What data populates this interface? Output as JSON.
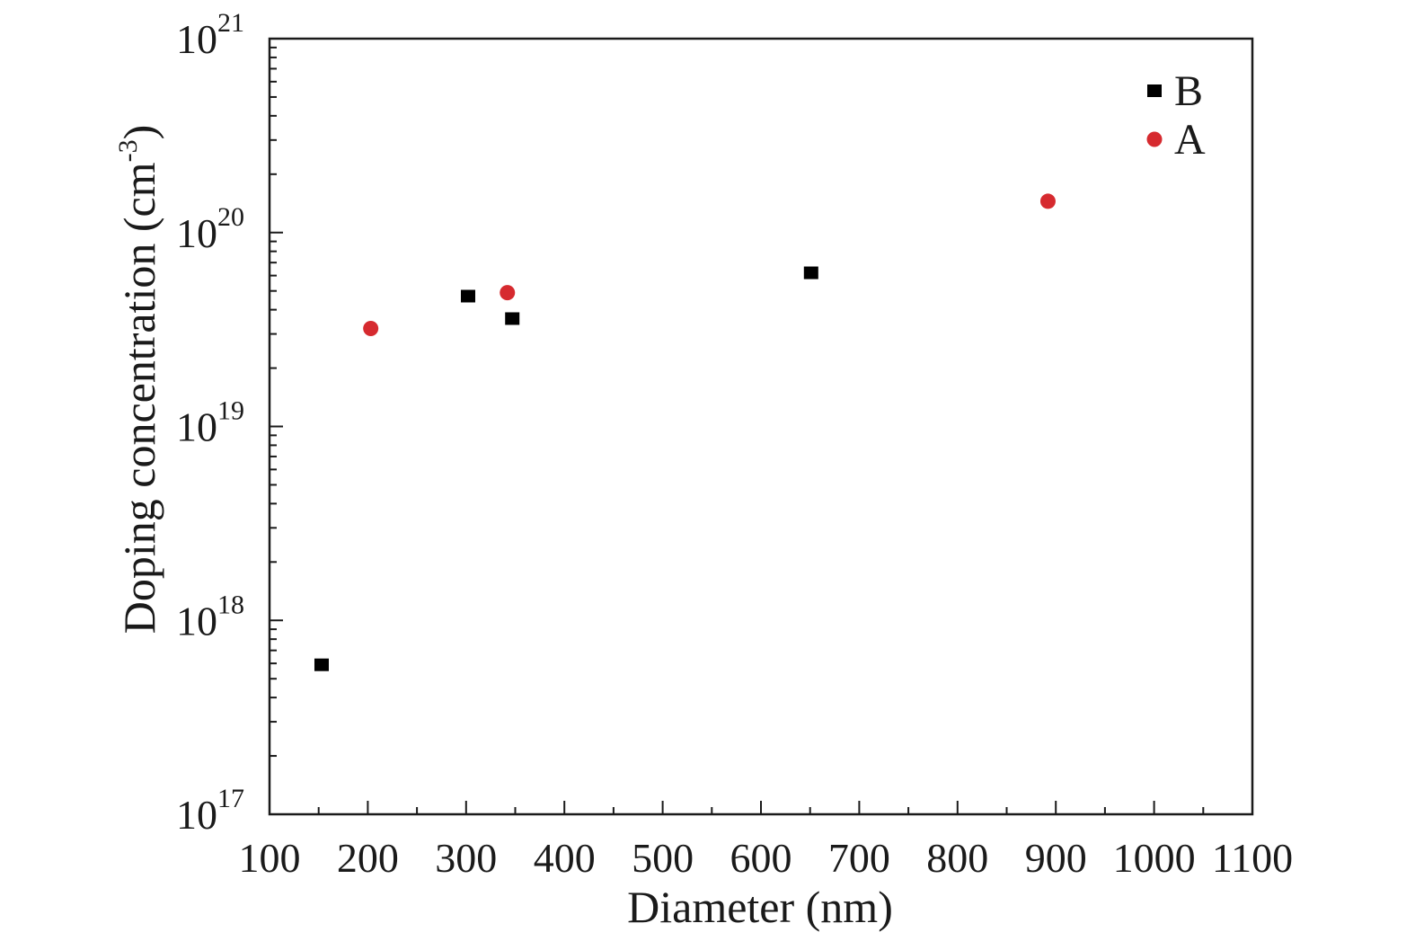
{
  "chart_data": {
    "type": "scatter",
    "xlabel": "Diameter (nm)",
    "ylabel": {
      "main": "Doping concentration (cm",
      "sup": "-3",
      "end": ")"
    },
    "xlim": [
      100,
      1100
    ],
    "ylim": [
      1e+17,
      1e+21
    ],
    "y_scale": "log",
    "x_ticks": [
      "100",
      "200",
      "300",
      "400",
      "500",
      "600",
      "700",
      "800",
      "900",
      "1000",
      "1100"
    ],
    "y_ticks": [
      {
        "base": "10",
        "exp": "17"
      },
      {
        "base": "10",
        "exp": "18"
      },
      {
        "base": "10",
        "exp": "19"
      },
      {
        "base": "10",
        "exp": "20"
      },
      {
        "base": "10",
        "exp": "21"
      }
    ],
    "grid": false,
    "legend_position": "top-right",
    "series": [
      {
        "name": "B",
        "marker": "square",
        "color": "#000000",
        "points": [
          [
            153,
            5.9e+17
          ],
          [
            302,
            4.7e+19
          ],
          [
            347,
            3.6e+19
          ],
          [
            651,
            6.2e+19
          ]
        ]
      },
      {
        "name": "A",
        "marker": "circle",
        "color": "#d62a2f",
        "points": [
          [
            203,
            3.2e+19
          ],
          [
            342,
            4.9e+19
          ],
          [
            892,
            1.45e+20
          ]
        ]
      }
    ]
  }
}
